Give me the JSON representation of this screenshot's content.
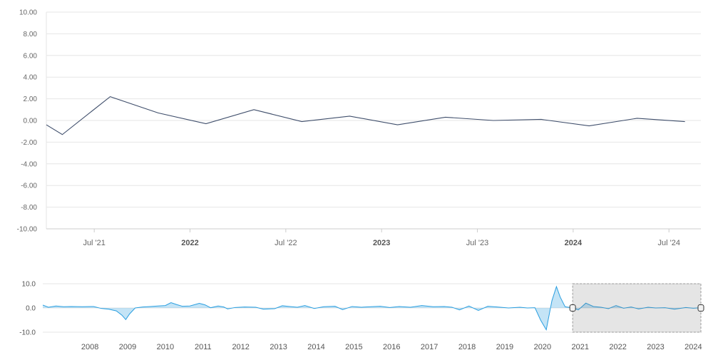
{
  "chart_data": [
    {
      "type": "line",
      "title": "",
      "xlabel": "",
      "ylabel": "",
      "ylim": [
        -10,
        10
      ],
      "grid": true,
      "y_ticks": [
        "10.00",
        "8.00",
        "6.00",
        "4.00",
        "2.00",
        "0.00",
        "-2.00",
        "-4.00",
        "-6.00",
        "-8.00",
        "-10.00"
      ],
      "x_ticks": [
        {
          "label": "Jul '21",
          "date": "2021-07-01",
          "major": false
        },
        {
          "label": "2022",
          "date": "2022-01-01",
          "major": true
        },
        {
          "label": "Jul '22",
          "date": "2022-07-01",
          "major": false
        },
        {
          "label": "2023",
          "date": "2023-01-01",
          "major": true
        },
        {
          "label": "Jul '23",
          "date": "2023-07-01",
          "major": false
        },
        {
          "label": "2024",
          "date": "2024-01-01",
          "major": true
        },
        {
          "label": "Jul '24",
          "date": "2024-07-01",
          "major": false
        }
      ],
      "x_range": [
        "2021-04-01",
        "2024-09-01"
      ],
      "line_color": "#3f4e6b",
      "series": [
        {
          "points": [
            {
              "x": "2021-04-01",
              "y": -0.4
            },
            {
              "x": "2021-05-01",
              "y": -1.3
            },
            {
              "x": "2021-08-01",
              "y": 2.2
            },
            {
              "x": "2021-11-01",
              "y": 0.7
            },
            {
              "x": "2022-02-01",
              "y": -0.3
            },
            {
              "x": "2022-05-01",
              "y": 1.0
            },
            {
              "x": "2022-08-01",
              "y": -0.1
            },
            {
              "x": "2022-11-01",
              "y": 0.4
            },
            {
              "x": "2023-02-01",
              "y": -0.4
            },
            {
              "x": "2023-05-01",
              "y": 0.3
            },
            {
              "x": "2023-08-01",
              "y": 0.0
            },
            {
              "x": "2023-11-01",
              "y": 0.1
            },
            {
              "x": "2024-02-01",
              "y": -0.5
            },
            {
              "x": "2024-05-01",
              "y": 0.2
            },
            {
              "x": "2024-08-01",
              "y": -0.1
            }
          ]
        }
      ]
    },
    {
      "type": "area",
      "title": "",
      "ylim": [
        -10,
        10
      ],
      "y_ticks": [
        "10.0",
        "0.0",
        "-10.0"
      ],
      "x_ticks": [
        "2008",
        "2009",
        "2010",
        "2011",
        "2012",
        "2013",
        "2014",
        "2015",
        "2016",
        "2017",
        "2018",
        "2019",
        "2020",
        "2021",
        "2022",
        "2023",
        "2024"
      ],
      "x_range": [
        2007.25,
        2024.7
      ],
      "selection_range": [
        2021.3,
        2024.7
      ],
      "area_color": "#2b9fe0",
      "series": [
        {
          "points": [
            [
              2007.25,
              1.2
            ],
            [
              2007.4,
              0.3
            ],
            [
              2007.6,
              0.8
            ],
            [
              2007.8,
              0.5
            ],
            [
              2008.0,
              0.6
            ],
            [
              2008.3,
              0.5
            ],
            [
              2008.6,
              0.6
            ],
            [
              2008.8,
              -0.2
            ],
            [
              2009.0,
              -0.5
            ],
            [
              2009.2,
              -1.2
            ],
            [
              2009.35,
              -3.0
            ],
            [
              2009.45,
              -4.8
            ],
            [
              2009.55,
              -2.5
            ],
            [
              2009.7,
              0.0
            ],
            [
              2009.9,
              0.4
            ],
            [
              2010.1,
              0.6
            ],
            [
              2010.3,
              0.8
            ],
            [
              2010.5,
              1.0
            ],
            [
              2010.65,
              2.2
            ],
            [
              2010.8,
              1.4
            ],
            [
              2010.95,
              0.7
            ],
            [
              2011.15,
              0.8
            ],
            [
              2011.4,
              1.9
            ],
            [
              2011.55,
              1.3
            ],
            [
              2011.7,
              0.1
            ],
            [
              2011.9,
              0.8
            ],
            [
              2012.05,
              0.4
            ],
            [
              2012.15,
              -0.4
            ],
            [
              2012.35,
              0.2
            ],
            [
              2012.6,
              0.4
            ],
            [
              2012.9,
              0.3
            ],
            [
              2013.1,
              -0.5
            ],
            [
              2013.4,
              -0.3
            ],
            [
              2013.6,
              0.9
            ],
            [
              2013.8,
              0.6
            ],
            [
              2014.0,
              0.3
            ],
            [
              2014.2,
              1.0
            ],
            [
              2014.45,
              -0.2
            ],
            [
              2014.7,
              0.5
            ],
            [
              2015.0,
              0.7
            ],
            [
              2015.2,
              -0.7
            ],
            [
              2015.45,
              0.6
            ],
            [
              2015.7,
              0.3
            ],
            [
              2015.95,
              0.5
            ],
            [
              2016.2,
              0.7
            ],
            [
              2016.45,
              0.2
            ],
            [
              2016.7,
              0.6
            ],
            [
              2017.0,
              0.3
            ],
            [
              2017.3,
              1.0
            ],
            [
              2017.6,
              0.5
            ],
            [
              2017.9,
              0.6
            ],
            [
              2018.1,
              0.3
            ],
            [
              2018.3,
              -0.8
            ],
            [
              2018.55,
              0.8
            ],
            [
              2018.8,
              -1.0
            ],
            [
              2019.05,
              0.7
            ],
            [
              2019.3,
              0.4
            ],
            [
              2019.6,
              0.0
            ],
            [
              2019.9,
              0.3
            ],
            [
              2020.1,
              0.0
            ],
            [
              2020.3,
              0.1
            ],
            [
              2020.45,
              -5.0
            ],
            [
              2020.6,
              -9.0
            ],
            [
              2020.75,
              3.0
            ],
            [
              2020.87,
              8.8
            ],
            [
              2020.97,
              4.5
            ],
            [
              2021.1,
              0.5
            ],
            [
              2021.3,
              0.0
            ],
            [
              2021.45,
              -0.8
            ],
            [
              2021.65,
              2.0
            ],
            [
              2021.85,
              0.6
            ],
            [
              2022.05,
              0.3
            ],
            [
              2022.25,
              -0.3
            ],
            [
              2022.45,
              1.0
            ],
            [
              2022.65,
              -0.1
            ],
            [
              2022.85,
              0.4
            ],
            [
              2023.05,
              -0.4
            ],
            [
              2023.3,
              0.3
            ],
            [
              2023.5,
              0.0
            ],
            [
              2023.75,
              0.1
            ],
            [
              2024.0,
              -0.5
            ],
            [
              2024.3,
              0.2
            ],
            [
              2024.5,
              -0.1
            ],
            [
              2024.7,
              0.1
            ]
          ]
        }
      ]
    }
  ]
}
